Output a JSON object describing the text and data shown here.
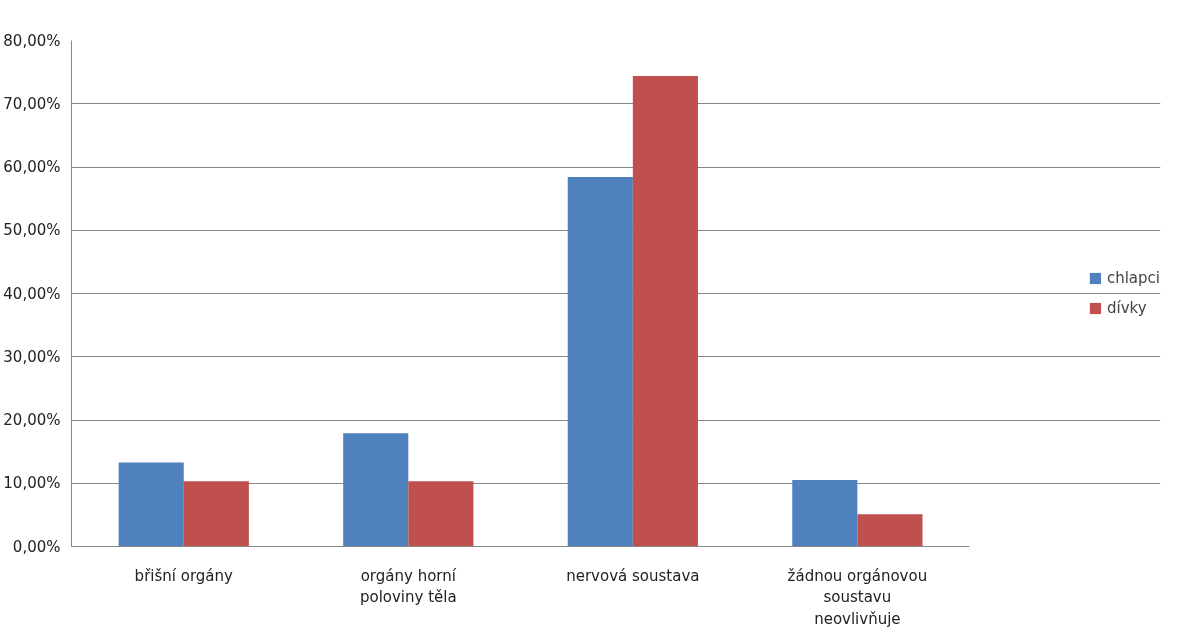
{
  "chart_data": {
    "type": "bar",
    "categories": [
      "břišní orgány",
      "orgány horní poloviny těla",
      "nervová soustava",
      "žádnou orgánovou soustavu neovlivňuje"
    ],
    "series": [
      {
        "name": "chlapci",
        "color": "#4f81bd",
        "values": [
          13.3,
          17.9,
          58.4,
          10.5
        ]
      },
      {
        "name": "dívky",
        "color": "#c0504d",
        "values": [
          10.3,
          10.3,
          74.4,
          5.1
        ]
      }
    ],
    "ylim": [
      0,
      80
    ],
    "yticks": [
      {
        "value": 0,
        "label": "0,00%"
      },
      {
        "value": 10,
        "label": "10,00%"
      },
      {
        "value": 20,
        "label": "20,00%"
      },
      {
        "value": 30,
        "label": "30,00%"
      },
      {
        "value": 40,
        "label": "40,00%"
      },
      {
        "value": 50,
        "label": "50,00%"
      },
      {
        "value": 60,
        "label": "60,00%"
      },
      {
        "value": 70,
        "label": "70,00%"
      },
      {
        "value": 80,
        "label": "80,00%"
      }
    ],
    "grid": "y",
    "legend": "right"
  }
}
